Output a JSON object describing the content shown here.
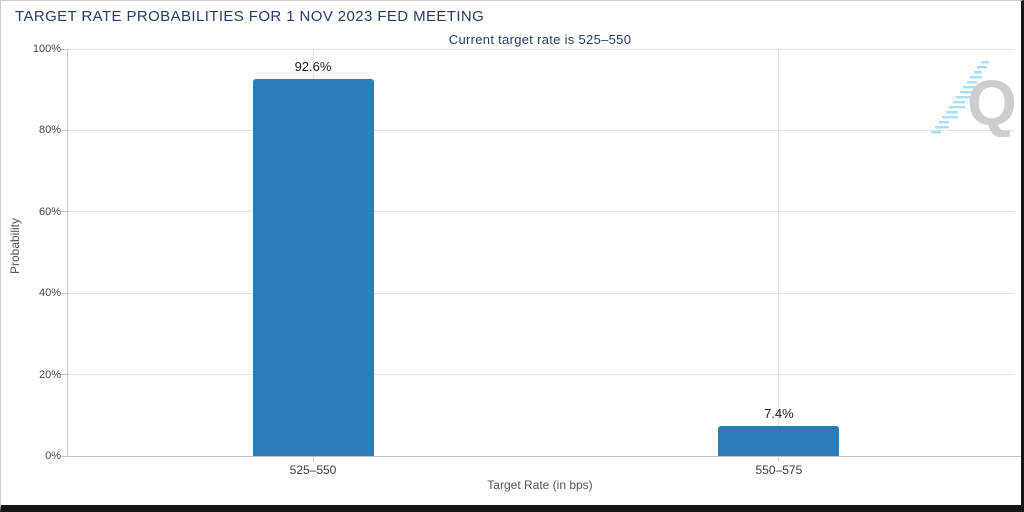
{
  "header": {
    "title": "TARGET RATE PROBABILITIES FOR 1 NOV 2023 FED MEETING",
    "subtitle": "Current target rate is 525–550"
  },
  "watermark": {
    "letter": "Q"
  },
  "chart_data": {
    "type": "bar",
    "title": "TARGET RATE PROBABILITIES FOR 1 NOV 2023 FED MEETING",
    "subtitle": "Current target rate is 525–550",
    "categories": [
      "525–550",
      "550–575"
    ],
    "values": [
      92.6,
      7.4
    ],
    "value_labels": [
      "92.6%",
      "7.4%"
    ],
    "xlabel": "Target Rate (in bps)",
    "ylabel": "Probability",
    "ylim": [
      0,
      100
    ],
    "yticks": [
      0,
      20,
      40,
      60,
      80,
      100
    ],
    "ytick_labels": [
      "0%",
      "20%",
      "40%",
      "60%",
      "80%",
      "100%"
    ],
    "grid": true,
    "legend": false,
    "bar_color": "#2a7eb8"
  },
  "colors": {
    "bar": "#2a7eb8",
    "title_text": "#283a68",
    "axis_text": "#555555",
    "tick_text": "#444444",
    "gridline": "#e3e3e3",
    "axis_line": "#c9c9c9",
    "frame_dark": "#14141c",
    "watermark_gray": "#cbcbcb",
    "watermark_blue": "#a6dcf7"
  }
}
